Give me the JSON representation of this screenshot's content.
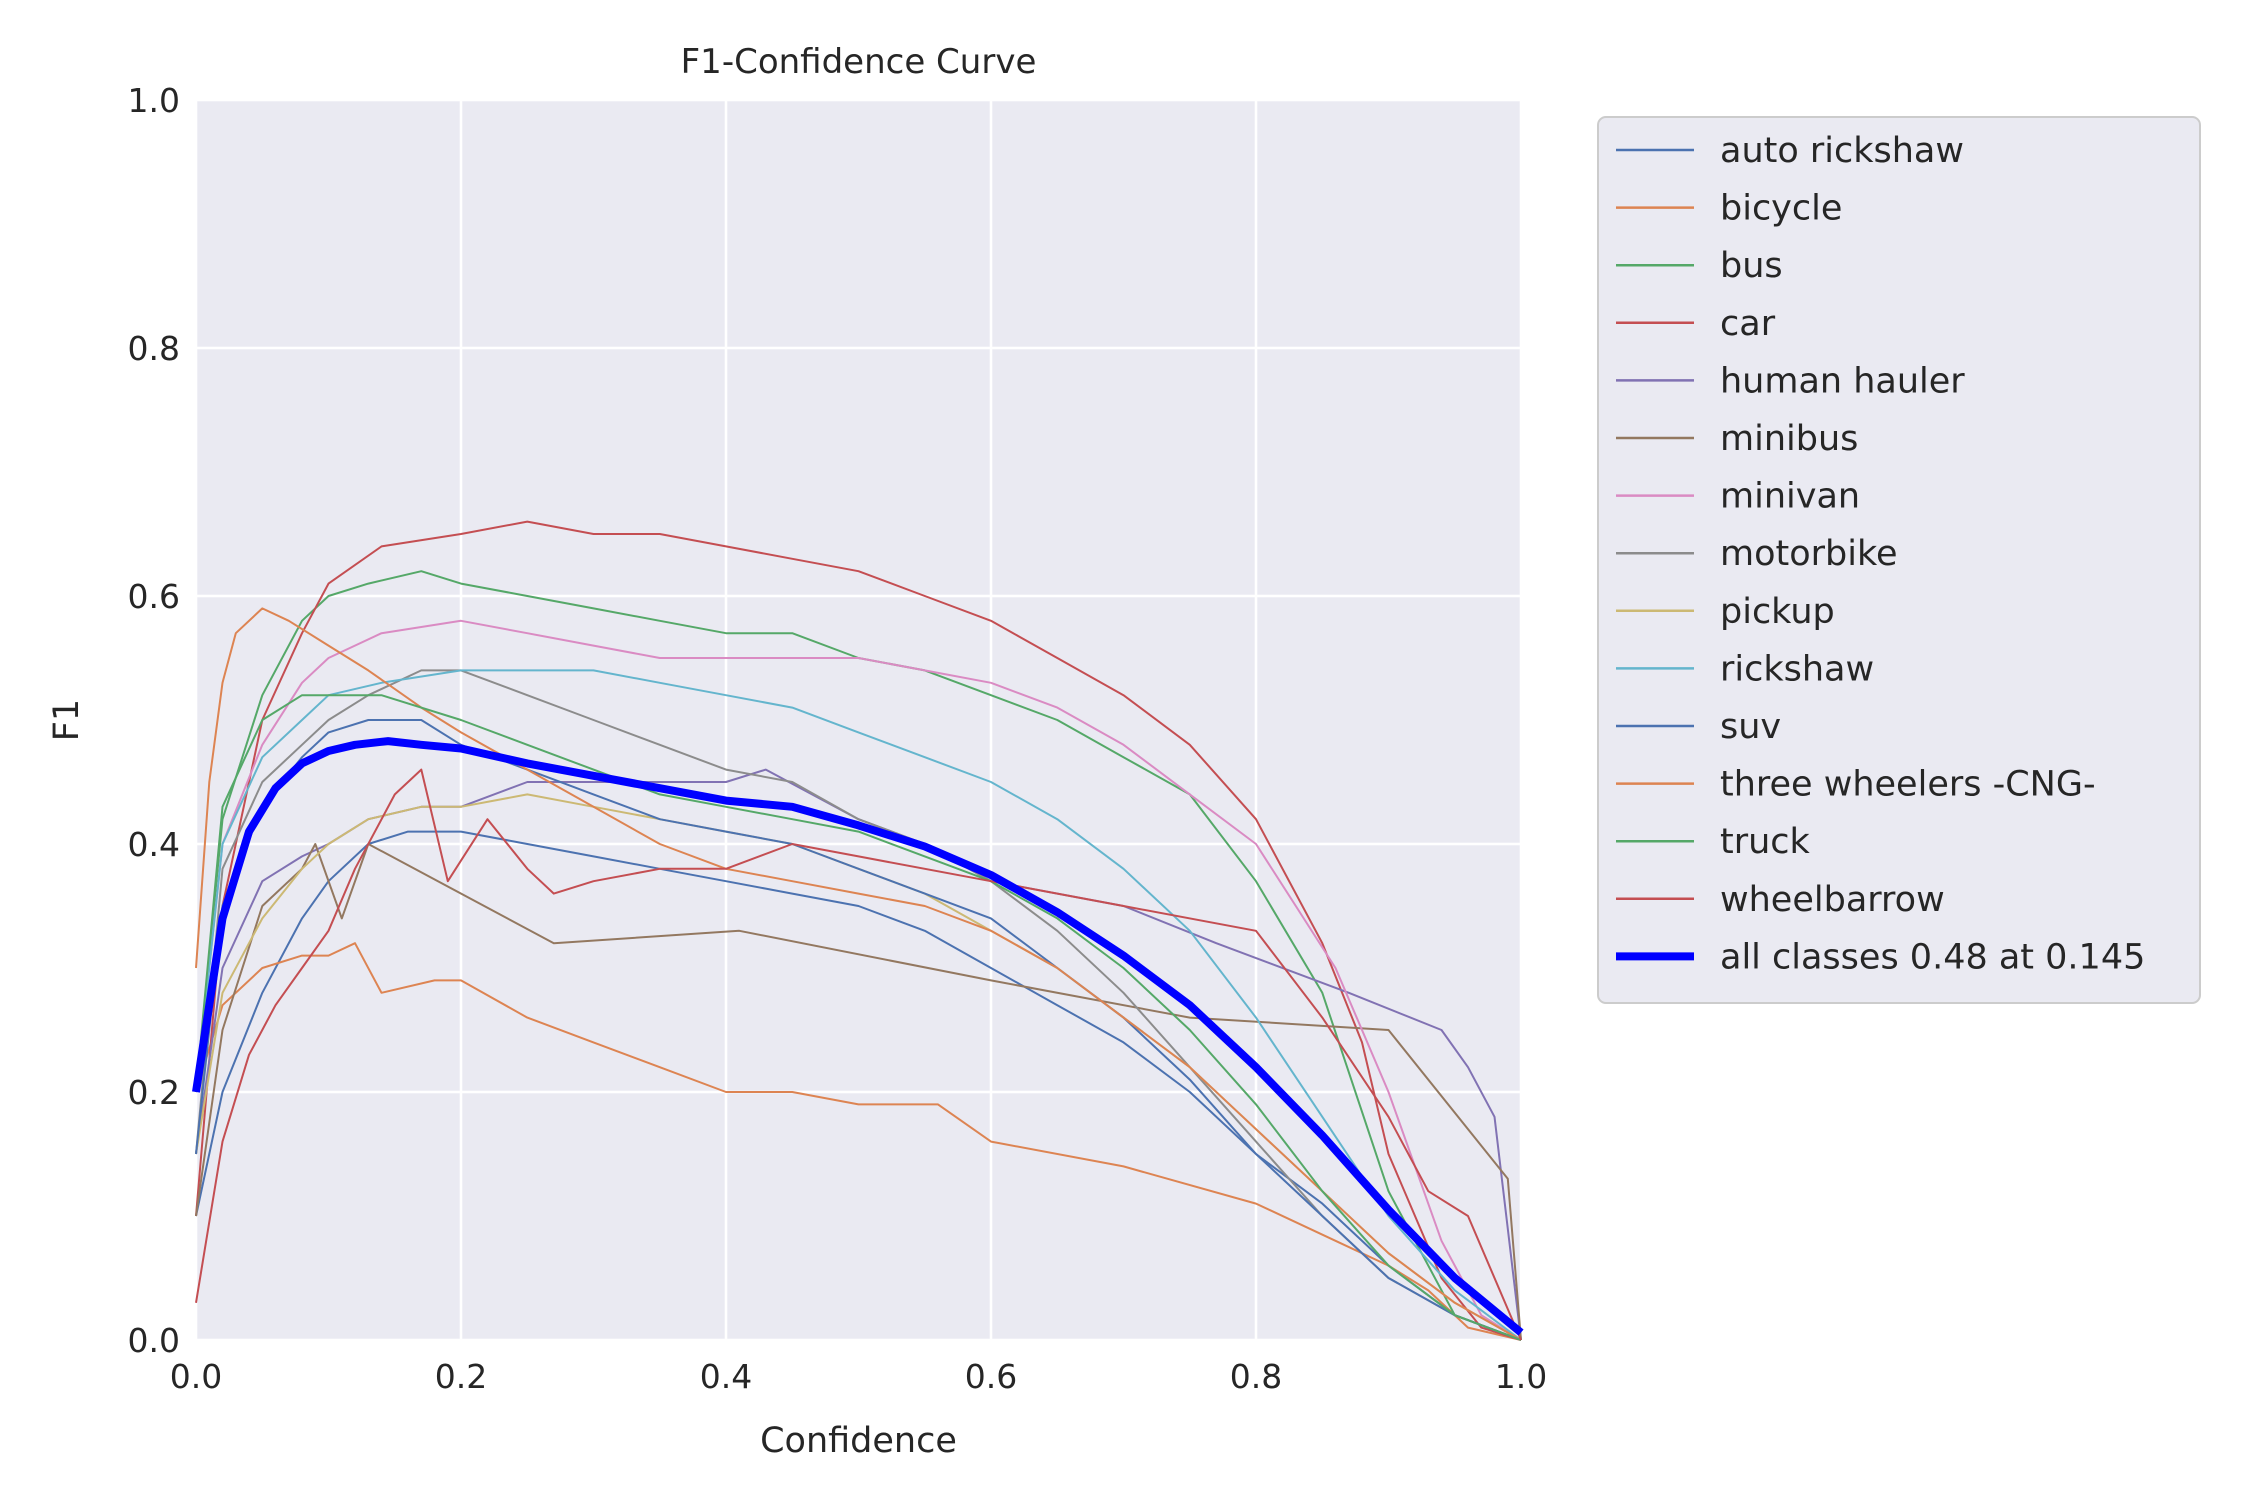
{
  "chart_data": {
    "type": "line",
    "title": "F1-Confidence Curve",
    "xlabel": "Confidence",
    "ylabel": "F1",
    "xlim": [
      0,
      1
    ],
    "ylim": [
      0,
      1
    ],
    "grid": true,
    "legend_position": "outside-right",
    "x_ticks": [
      0,
      0.2,
      0.4,
      0.6,
      0.8,
      1.0
    ],
    "y_ticks": [
      0,
      0.2,
      0.4,
      0.6,
      0.8,
      1.0
    ],
    "x_tick_labels": [
      "0.0",
      "0.2",
      "0.4",
      "0.6",
      "0.8",
      "1.0"
    ],
    "y_tick_labels": [
      "0.0",
      "0.2",
      "0.4",
      "0.6",
      "0.8",
      "1.0"
    ],
    "series": [
      {
        "name": "auto rickshaw",
        "color": "#4c72b0",
        "x": [
          0,
          0.02,
          0.05,
          0.08,
          0.1,
          0.13,
          0.16,
          0.2,
          0.25,
          0.3,
          0.35,
          0.4,
          0.45,
          0.5,
          0.55,
          0.6,
          0.65,
          0.7,
          0.75,
          0.8,
          0.85,
          0.9,
          0.95,
          1.0
        ],
        "y": [
          0.1,
          0.2,
          0.28,
          0.34,
          0.37,
          0.4,
          0.41,
          0.41,
          0.4,
          0.39,
          0.38,
          0.37,
          0.36,
          0.35,
          0.33,
          0.3,
          0.27,
          0.24,
          0.2,
          0.15,
          0.11,
          0.06,
          0.02,
          0.0
        ]
      },
      {
        "name": "bicycle",
        "color": "#dd8452",
        "x": [
          0,
          0.02,
          0.05,
          0.08,
          0.1,
          0.12,
          0.14,
          0.18,
          0.2,
          0.25,
          0.3,
          0.35,
          0.4,
          0.45,
          0.5,
          0.56,
          0.6,
          0.7,
          0.8,
          0.86,
          0.9,
          0.93,
          0.96,
          1.0
        ],
        "y": [
          0.2,
          0.27,
          0.3,
          0.31,
          0.31,
          0.32,
          0.28,
          0.29,
          0.29,
          0.26,
          0.24,
          0.22,
          0.2,
          0.2,
          0.19,
          0.19,
          0.16,
          0.14,
          0.11,
          0.08,
          0.06,
          0.04,
          0.01,
          0.0
        ]
      },
      {
        "name": "bus",
        "color": "#55a868",
        "x": [
          0,
          0.02,
          0.05,
          0.08,
          0.1,
          0.13,
          0.17,
          0.2,
          0.25,
          0.3,
          0.35,
          0.4,
          0.45,
          0.5,
          0.55,
          0.6,
          0.65,
          0.7,
          0.75,
          0.8,
          0.85,
          0.9,
          0.95,
          1.0
        ],
        "y": [
          0.2,
          0.42,
          0.52,
          0.58,
          0.6,
          0.61,
          0.62,
          0.61,
          0.6,
          0.59,
          0.58,
          0.57,
          0.57,
          0.55,
          0.54,
          0.52,
          0.5,
          0.47,
          0.44,
          0.37,
          0.28,
          0.12,
          0.02,
          0.0
        ]
      },
      {
        "name": "car",
        "color": "#c44e52",
        "x": [
          0,
          0.02,
          0.05,
          0.08,
          0.1,
          0.14,
          0.2,
          0.25,
          0.3,
          0.35,
          0.4,
          0.45,
          0.5,
          0.55,
          0.6,
          0.65,
          0.7,
          0.75,
          0.8,
          0.85,
          0.88,
          0.9,
          0.94,
          0.97,
          1.0
        ],
        "y": [
          0.1,
          0.35,
          0.5,
          0.57,
          0.61,
          0.64,
          0.65,
          0.66,
          0.65,
          0.65,
          0.64,
          0.63,
          0.62,
          0.6,
          0.58,
          0.55,
          0.52,
          0.48,
          0.42,
          0.32,
          0.24,
          0.15,
          0.05,
          0.01,
          0.0
        ]
      },
      {
        "name": "human hauler",
        "color": "#8172b3",
        "x": [
          0,
          0.02,
          0.05,
          0.08,
          0.1,
          0.13,
          0.17,
          0.2,
          0.25,
          0.3,
          0.4,
          0.43,
          0.5,
          0.55,
          0.6,
          0.7,
          0.77,
          0.87,
          0.94,
          0.96,
          0.98,
          1.0
        ],
        "y": [
          0.15,
          0.3,
          0.37,
          0.39,
          0.4,
          0.42,
          0.43,
          0.43,
          0.45,
          0.45,
          0.45,
          0.46,
          0.42,
          0.4,
          0.37,
          0.35,
          0.32,
          0.28,
          0.25,
          0.22,
          0.18,
          0.0
        ]
      },
      {
        "name": "minibus",
        "color": "#937860",
        "x": [
          0,
          0.02,
          0.05,
          0.08,
          0.09,
          0.11,
          0.13,
          0.27,
          0.41,
          0.6,
          0.75,
          0.9,
          0.99,
          1.0
        ],
        "y": [
          0.1,
          0.25,
          0.35,
          0.38,
          0.4,
          0.34,
          0.4,
          0.32,
          0.33,
          0.29,
          0.26,
          0.25,
          0.13,
          0.0
        ]
      },
      {
        "name": "minivan",
        "color": "#da8bc3",
        "x": [
          0,
          0.02,
          0.05,
          0.08,
          0.1,
          0.14,
          0.2,
          0.25,
          0.3,
          0.35,
          0.4,
          0.45,
          0.5,
          0.55,
          0.6,
          0.65,
          0.7,
          0.75,
          0.8,
          0.83,
          0.86,
          0.9,
          0.94,
          0.97,
          1.0
        ],
        "y": [
          0.2,
          0.4,
          0.48,
          0.53,
          0.55,
          0.57,
          0.58,
          0.57,
          0.56,
          0.55,
          0.55,
          0.55,
          0.55,
          0.54,
          0.53,
          0.51,
          0.48,
          0.44,
          0.4,
          0.35,
          0.3,
          0.2,
          0.08,
          0.02,
          0.0
        ]
      },
      {
        "name": "motorbike",
        "color": "#8c8c8c",
        "x": [
          0,
          0.02,
          0.05,
          0.08,
          0.1,
          0.13,
          0.17,
          0.2,
          0.25,
          0.3,
          0.35,
          0.4,
          0.45,
          0.5,
          0.55,
          0.6,
          0.65,
          0.7,
          0.75,
          0.8,
          0.85,
          0.9,
          0.95,
          1.0
        ],
        "y": [
          0.15,
          0.38,
          0.45,
          0.48,
          0.5,
          0.52,
          0.54,
          0.54,
          0.52,
          0.5,
          0.48,
          0.46,
          0.45,
          0.42,
          0.4,
          0.37,
          0.33,
          0.28,
          0.22,
          0.16,
          0.1,
          0.05,
          0.02,
          0.0
        ]
      },
      {
        "name": "pickup",
        "color": "#ccb974",
        "x": [
          0,
          0.02,
          0.05,
          0.08,
          0.1,
          0.13,
          0.17,
          0.2,
          0.25,
          0.3,
          0.35,
          0.4,
          0.45,
          0.5,
          0.55,
          0.6,
          0.65,
          0.7,
          0.75,
          0.8,
          0.85,
          0.9,
          0.95,
          1.0
        ],
        "y": [
          0.15,
          0.28,
          0.34,
          0.38,
          0.4,
          0.42,
          0.43,
          0.43,
          0.44,
          0.43,
          0.42,
          0.41,
          0.4,
          0.38,
          0.36,
          0.33,
          0.3,
          0.26,
          0.22,
          0.17,
          0.12,
          0.07,
          0.03,
          0.0
        ]
      },
      {
        "name": "rickshaw",
        "color": "#64b5cd",
        "x": [
          0,
          0.02,
          0.05,
          0.08,
          0.1,
          0.14,
          0.2,
          0.25,
          0.3,
          0.35,
          0.4,
          0.45,
          0.5,
          0.55,
          0.6,
          0.65,
          0.7,
          0.75,
          0.8,
          0.85,
          0.9,
          0.95,
          1.0
        ],
        "y": [
          0.2,
          0.4,
          0.47,
          0.5,
          0.52,
          0.53,
          0.54,
          0.54,
          0.54,
          0.53,
          0.52,
          0.51,
          0.49,
          0.47,
          0.45,
          0.42,
          0.38,
          0.33,
          0.26,
          0.18,
          0.1,
          0.04,
          0.0
        ]
      },
      {
        "name": "suv",
        "color": "#4c72b0",
        "x": [
          0,
          0.02,
          0.05,
          0.08,
          0.1,
          0.13,
          0.17,
          0.2,
          0.25,
          0.3,
          0.35,
          0.4,
          0.45,
          0.5,
          0.55,
          0.6,
          0.65,
          0.7,
          0.75,
          0.8,
          0.85,
          0.9,
          0.95,
          1.0
        ],
        "y": [
          0.15,
          0.35,
          0.43,
          0.47,
          0.49,
          0.5,
          0.5,
          0.48,
          0.46,
          0.44,
          0.42,
          0.41,
          0.4,
          0.38,
          0.36,
          0.34,
          0.3,
          0.26,
          0.21,
          0.15,
          0.1,
          0.05,
          0.02,
          0.0
        ]
      },
      {
        "name": "three wheelers -CNG-",
        "color": "#dd8452",
        "x": [
          0,
          0.01,
          0.02,
          0.03,
          0.05,
          0.07,
          0.1,
          0.13,
          0.17,
          0.2,
          0.25,
          0.3,
          0.35,
          0.4,
          0.45,
          0.5,
          0.55,
          0.6,
          0.65,
          0.7,
          0.75,
          0.8,
          0.85,
          0.9,
          0.95,
          1.0
        ],
        "y": [
          0.3,
          0.45,
          0.53,
          0.57,
          0.59,
          0.58,
          0.56,
          0.54,
          0.51,
          0.49,
          0.46,
          0.43,
          0.4,
          0.38,
          0.37,
          0.36,
          0.35,
          0.33,
          0.3,
          0.26,
          0.22,
          0.17,
          0.12,
          0.07,
          0.03,
          0.0
        ]
      },
      {
        "name": "truck",
        "color": "#55a868",
        "x": [
          0,
          0.02,
          0.05,
          0.08,
          0.1,
          0.14,
          0.2,
          0.25,
          0.3,
          0.35,
          0.4,
          0.45,
          0.5,
          0.55,
          0.6,
          0.65,
          0.7,
          0.75,
          0.8,
          0.85,
          0.9,
          0.95,
          1.0
        ],
        "y": [
          0.2,
          0.43,
          0.5,
          0.52,
          0.52,
          0.52,
          0.5,
          0.48,
          0.46,
          0.44,
          0.43,
          0.42,
          0.41,
          0.39,
          0.37,
          0.34,
          0.3,
          0.25,
          0.19,
          0.12,
          0.06,
          0.02,
          0.0
        ]
      },
      {
        "name": "wheelbarrow",
        "color": "#c44e52",
        "x": [
          0,
          0.02,
          0.04,
          0.06,
          0.08,
          0.1,
          0.12,
          0.15,
          0.17,
          0.19,
          0.22,
          0.25,
          0.27,
          0.3,
          0.35,
          0.4,
          0.45,
          0.5,
          0.6,
          0.7,
          0.8,
          0.85,
          0.9,
          0.93,
          0.96,
          1.0
        ],
        "y": [
          0.03,
          0.16,
          0.23,
          0.27,
          0.3,
          0.33,
          0.38,
          0.44,
          0.46,
          0.37,
          0.42,
          0.38,
          0.36,
          0.37,
          0.38,
          0.38,
          0.4,
          0.39,
          0.37,
          0.35,
          0.33,
          0.26,
          0.18,
          0.12,
          0.1,
          0.0
        ]
      },
      {
        "name": "all classes 0.48 at 0.145",
        "color": "#0000ff",
        "emphasis": true,
        "x": [
          0,
          0.02,
          0.04,
          0.06,
          0.08,
          0.1,
          0.12,
          0.145,
          0.17,
          0.2,
          0.25,
          0.3,
          0.35,
          0.4,
          0.45,
          0.5,
          0.55,
          0.6,
          0.65,
          0.7,
          0.75,
          0.8,
          0.85,
          0.9,
          0.95,
          1.0
        ],
        "y": [
          0.2,
          0.34,
          0.41,
          0.445,
          0.465,
          0.475,
          0.48,
          0.483,
          0.48,
          0.477,
          0.465,
          0.455,
          0.445,
          0.435,
          0.43,
          0.415,
          0.398,
          0.375,
          0.345,
          0.31,
          0.27,
          0.22,
          0.165,
          0.105,
          0.05,
          0.006
        ]
      }
    ]
  }
}
